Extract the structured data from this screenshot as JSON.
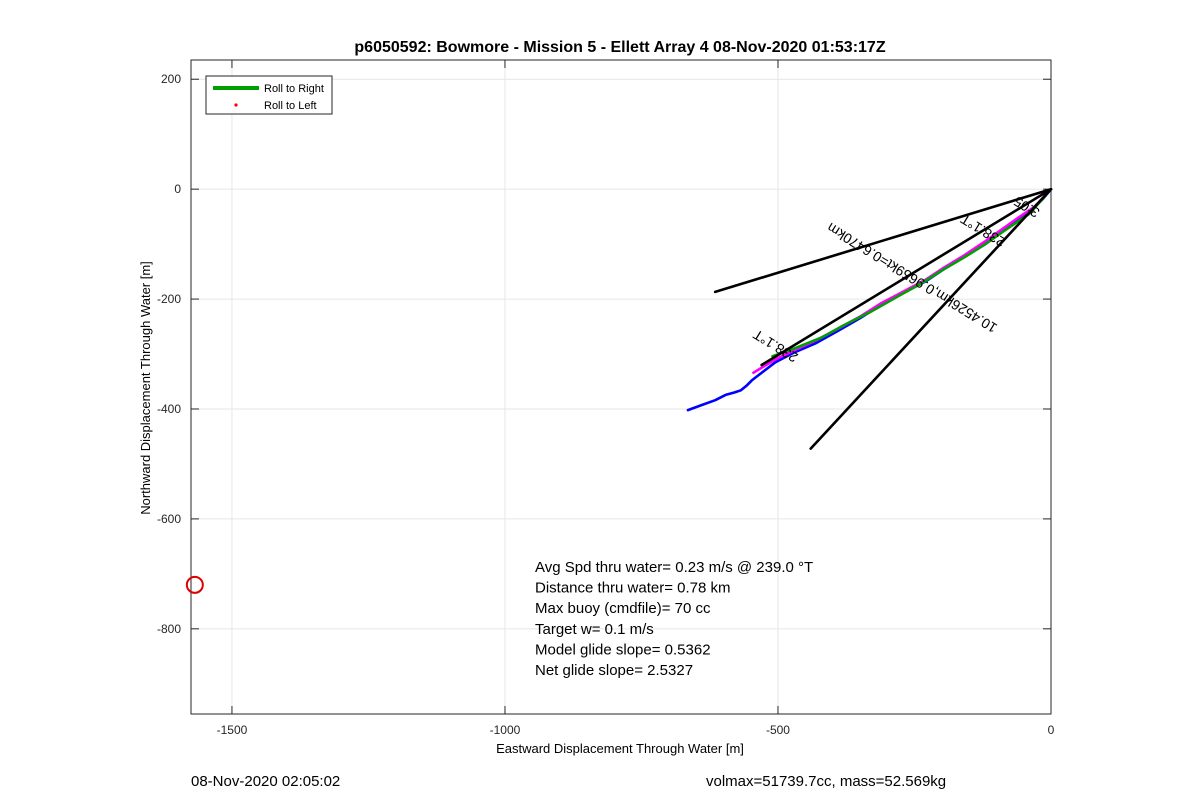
{
  "chart_data": {
    "type": "line",
    "title": "p6050592: Bowmore - Mission 5 - Ellett Array 4 08-Nov-2020 01:53:17Z",
    "xlabel": "Eastward Displacement Through Water [m]",
    "ylabel": "Northward Displacement Through Water [m]",
    "xlim": [
      -1575,
      0
    ],
    "ylim": [
      -955,
      235
    ],
    "xticks": [
      -1500,
      -1000,
      -500,
      0
    ],
    "yticks": [
      200,
      0,
      -200,
      -400,
      -600,
      -800
    ],
    "grid": true,
    "legend": {
      "placement": "top-left",
      "entries": [
        {
          "label": "Roll to Right",
          "color": "#00a000",
          "style": "line"
        },
        {
          "label": "Roll to Left",
          "color": "#ff0000",
          "style": "dot"
        }
      ]
    },
    "series": [
      {
        "color": "#0000ff",
        "x": [
          -665,
          -640,
          -615,
          -595,
          -580,
          -568,
          -558,
          -548,
          -535,
          -505,
          -470,
          -430,
          -390,
          -350,
          -310,
          -270,
          -230,
          -195,
          -160,
          -125,
          -90,
          -60,
          -35,
          -15,
          0
        ],
        "y": [
          -402,
          -393,
          -384,
          -374,
          -370,
          -366,
          -358,
          -348,
          -338,
          -315,
          -297,
          -280,
          -258,
          -235,
          -210,
          -188,
          -168,
          -145,
          -122,
          -100,
          -76,
          -55,
          -36,
          -18,
          0
        ]
      },
      {
        "color": "#ff00ff",
        "x": [
          -545,
          -505,
          -470,
          -430,
          -390,
          -350,
          -310,
          -270,
          -230,
          -195,
          -160,
          -125,
          -90,
          -60,
          -30,
          0
        ],
        "y": [
          -334,
          -310,
          -293,
          -275,
          -254,
          -232,
          -207,
          -186,
          -165,
          -142,
          -121,
          -98,
          -73,
          -52,
          -32,
          0
        ]
      },
      {
        "color": "#00a000",
        "x": [
          -510,
          -470,
          -420,
          -380,
          -330,
          -280,
          -240,
          -200,
          -160,
          -120,
          -80,
          -40,
          -10
        ],
        "y": [
          -304,
          -290,
          -270,
          -248,
          -223,
          -195,
          -173,
          -148,
          -125,
          -100,
          -72,
          -45,
          -12
        ]
      },
      {
        "color": "#000000",
        "x": [
          -615,
          0
        ],
        "y": [
          -187,
          0
        ]
      },
      {
        "color": "#000000",
        "x": [
          -440,
          0
        ],
        "y": [
          -472,
          0
        ]
      },
      {
        "color": "#000000",
        "x": [
          -530,
          0
        ],
        "y": [
          -320,
          0
        ]
      }
    ],
    "annotations": [
      {
        "text": "238.1°T",
        "x": -500,
        "y": -278,
        "angle": 211.6
      },
      {
        "text": "10.4526km,0.9659kt=0.6470km",
        "x": -250,
        "y": -154,
        "angle": 211.6
      },
      {
        "text": "238.1°T",
        "x": -120,
        "y": -68,
        "angle": 211.6
      },
      {
        "text": "3:05",
        "x": -40,
        "y": -25,
        "angle": 211.6
      }
    ],
    "markers": [
      {
        "name": "target-circle",
        "x": -1568,
        "y": -720,
        "color": "#dd0000"
      }
    ],
    "info_text": [
      "Avg Spd thru water=  0.23 m/s @ 239.0 °T",
      "Distance thru water=  0.78 km",
      "Max buoy (cmdfile)= 70 cc",
      "Target w= 0.1 m/s",
      "Model glide slope= 0.5362",
      "Net glide slope= 2.5327"
    ]
  },
  "footer": {
    "left": "08-Nov-2020 02:05:02",
    "right": "volmax=51739.7cc, mass=52.569kg"
  }
}
